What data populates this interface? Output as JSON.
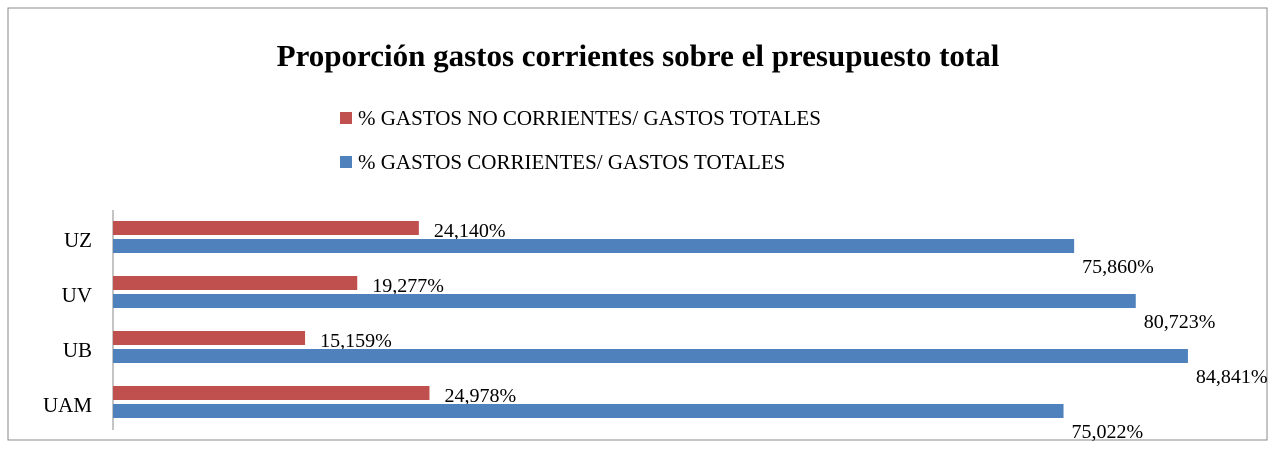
{
  "chart_data": {
    "type": "bar",
    "orientation": "horizontal",
    "title": "Proporción gastos corrientes sobre el presupuesto total",
    "categories": [
      "UZ",
      "UV",
      "UB",
      "UAM"
    ],
    "series": [
      {
        "name": "% GASTOS NO CORRIENTES/ GASTOS TOTALES",
        "color": "#c0504d",
        "values": [
          24.14,
          19.277,
          15.159,
          24.978
        ],
        "value_labels": [
          "24,140%",
          "19,277%",
          "15,159%",
          "24,978%"
        ]
      },
      {
        "name": "% GASTOS CORRIENTES/ GASTOS TOTALES",
        "color": "#4f81bd",
        "values": [
          75.86,
          80.723,
          84.841,
          75.022
        ],
        "value_labels": [
          "75,860%",
          "80,723%",
          "84,841%",
          "75,022%"
        ]
      }
    ]
  }
}
